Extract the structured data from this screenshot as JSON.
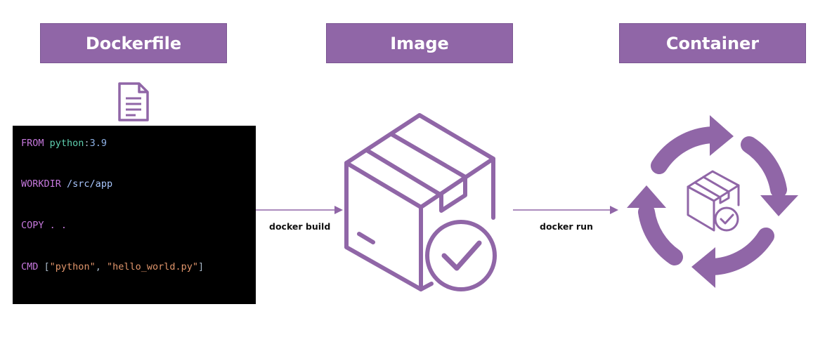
{
  "headers": {
    "dockerfile": "Dockerfile",
    "image": "Image",
    "container": "Container"
  },
  "code": {
    "line1": {
      "keyword": "FROM",
      "image": "python",
      "sep": ":",
      "tag": "3.9"
    },
    "line2": {
      "keyword": "WORKDIR",
      "arg": "/src/app"
    },
    "line3": {
      "keyword": "COPY",
      "arg": ". ."
    },
    "line4": {
      "keyword": "CMD",
      "open": "[",
      "arg1": "\"python\"",
      "comma": ", ",
      "arg2": "\"hello_world.py\"",
      "close": "]"
    }
  },
  "edges": {
    "build": "docker build",
    "run": "docker run"
  },
  "colors": {
    "accent": "#9066a7",
    "code_bg": "#000000"
  },
  "icons": [
    "document-icon",
    "package-check-icon",
    "cycle-arrows-icon"
  ]
}
